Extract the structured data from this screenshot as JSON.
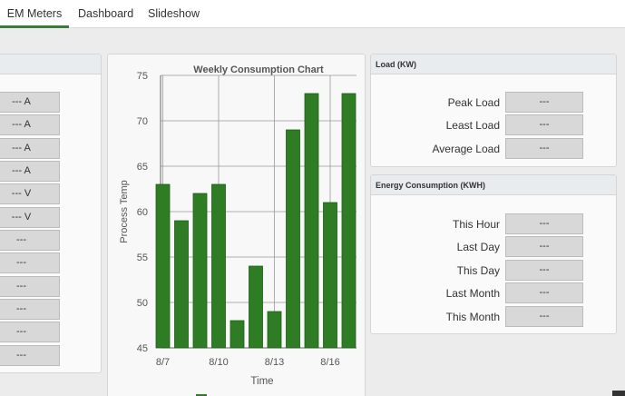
{
  "nav": {
    "tabs": [
      "EM Meters",
      "Dashboard",
      "Slideshow"
    ]
  },
  "left_panel": {
    "values": [
      "--- A",
      "--- A",
      "--- A",
      "--- A",
      "--- V",
      "--- V",
      "---",
      "---",
      "---",
      "---",
      "---",
      "---"
    ]
  },
  "chart_data": {
    "type": "bar",
    "title": "Weekly Consumption Chart",
    "xlabel": "Time",
    "ylabel": "Process Temp",
    "ylim": [
      45,
      75
    ],
    "yticks": [
      45,
      50,
      55,
      60,
      65,
      70,
      75
    ],
    "xticks": [
      {
        "label": "8/7",
        "index": 0
      },
      {
        "label": "8/10",
        "index": 3
      },
      {
        "label": "8/13",
        "index": 6
      },
      {
        "label": "8/16",
        "index": 9
      }
    ],
    "categories": [
      "8/7",
      "8/8",
      "8/9",
      "8/10",
      "8/11",
      "8/12",
      "8/13",
      "8/14",
      "8/15",
      "8/16",
      "8/17"
    ],
    "values": [
      63,
      59,
      62,
      63,
      48,
      54,
      49,
      69,
      73,
      61,
      73
    ],
    "bar_color": "#2e7d24",
    "grid": true
  },
  "load": {
    "title": "Load (KW)",
    "rows": [
      {
        "label": "Peak Load",
        "value": "---"
      },
      {
        "label": "Least Load",
        "value": "---"
      },
      {
        "label": "Average Load",
        "value": "---"
      }
    ]
  },
  "energy": {
    "title": "Energy Consumption (KWH)",
    "rows": [
      {
        "label": "This Hour",
        "value": "---"
      },
      {
        "label": "Last Day",
        "value": "---"
      },
      {
        "label": "This Day",
        "value": "---"
      },
      {
        "label": "Last Month",
        "value": "---"
      },
      {
        "label": "This Month",
        "value": "---"
      }
    ]
  }
}
